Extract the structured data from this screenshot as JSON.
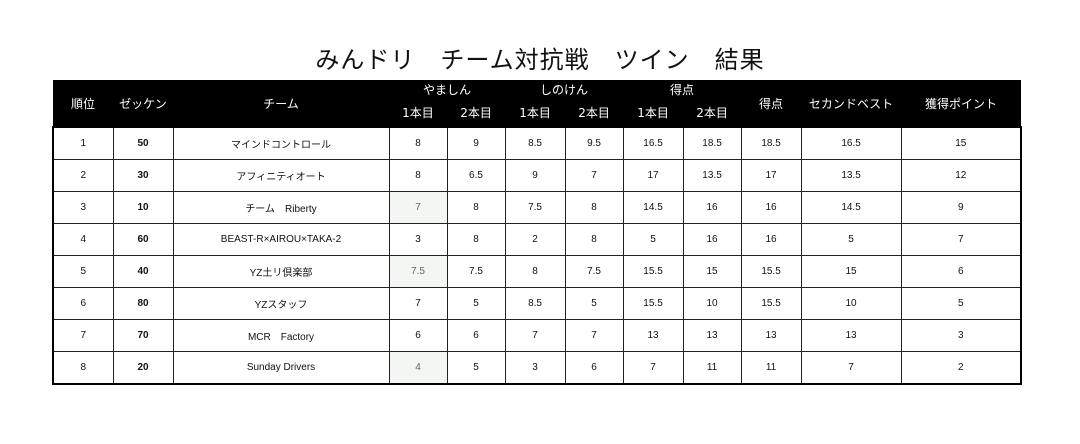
{
  "title": "みんドリ　チーム対抗戦　ツイン　結果",
  "headers": {
    "rank": "順位",
    "zekken": "ゼッケン",
    "team": "チーム",
    "group_yamashin": "やましん",
    "group_shinoken": "しのけん",
    "group_score": "得点",
    "run1": "1本目",
    "run2": "2本目",
    "points": "得点",
    "second_best": "セカンドベスト",
    "earned_points": "獲得ポイント"
  },
  "rows": [
    {
      "rank": "1",
      "zekken": "50",
      "team": "マインドコントロール",
      "yam1": "8",
      "yam2": "9",
      "shi1": "8.5",
      "shi2": "9.5",
      "sc1": "16.5",
      "sc2": "18.5",
      "score": "18.5",
      "second": "16.5",
      "pts": "15"
    },
    {
      "rank": "2",
      "zekken": "30",
      "team": "アフィニティオート",
      "yam1": "8",
      "yam2": "6.5",
      "shi1": "9",
      "shi2": "7",
      "sc1": "17",
      "sc2": "13.5",
      "score": "17",
      "second": "13.5",
      "pts": "12"
    },
    {
      "rank": "3",
      "zekken": "10",
      "team": "チーム　Riberty",
      "yam1": "7",
      "yam2": "8",
      "shi1": "7.5",
      "shi2": "8",
      "sc1": "14.5",
      "sc2": "16",
      "score": "16",
      "second": "14.5",
      "pts": "9"
    },
    {
      "rank": "4",
      "zekken": "60",
      "team": "BEAST-R×AIROU×TAKA-2",
      "yam1": "3",
      "yam2": "8",
      "shi1": "2",
      "shi2": "8",
      "sc1": "5",
      "sc2": "16",
      "score": "16",
      "second": "5",
      "pts": "7"
    },
    {
      "rank": "5",
      "zekken": "40",
      "team": "YZ土リ倶楽部",
      "yam1": "7.5",
      "yam2": "7.5",
      "shi1": "8",
      "shi2": "7.5",
      "sc1": "15.5",
      "sc2": "15",
      "score": "15.5",
      "second": "15",
      "pts": "6"
    },
    {
      "rank": "6",
      "zekken": "80",
      "team": "YZスタッフ",
      "yam1": "7",
      "yam2": "5",
      "shi1": "8.5",
      "shi2": "5",
      "sc1": "15.5",
      "sc2": "10",
      "score": "15.5",
      "second": "10",
      "pts": "5"
    },
    {
      "rank": "7",
      "zekken": "70",
      "team": "MCR　Factory",
      "yam1": "6",
      "yam2": "6",
      "shi1": "7",
      "shi2": "7",
      "sc1": "13",
      "sc2": "13",
      "score": "13",
      "second": "13",
      "pts": "3"
    },
    {
      "rank": "8",
      "zekken": "20",
      "team": "Sunday Drivers",
      "yam1": "4",
      "yam2": "5",
      "shi1": "3",
      "shi2": "6",
      "sc1": "7",
      "sc2": "11",
      "score": "11",
      "second": "7",
      "pts": "2"
    }
  ],
  "shaded_cells": [
    {
      "row": 2,
      "col": "yam1"
    },
    {
      "row": 4,
      "col": "yam1"
    },
    {
      "row": 7,
      "col": "yam1"
    }
  ]
}
